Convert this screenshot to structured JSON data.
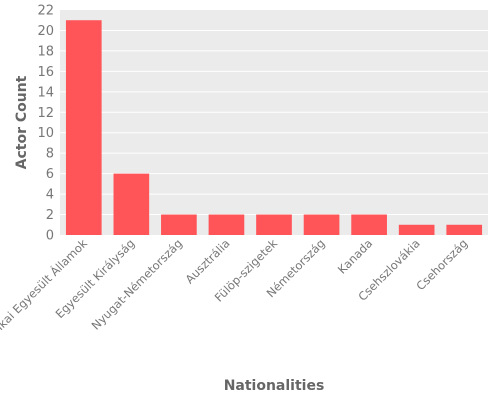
{
  "chart_data": {
    "type": "bar",
    "categories": [
      "Amerikai Egyesült Államok",
      "Egyesült Királyság",
      "Nyugat-Németország",
      "Ausztrália",
      "Fülöp-szigetek",
      "Németország",
      "Kanada",
      "Csehszlovákia",
      "Csehország"
    ],
    "values": [
      21,
      6,
      2,
      2,
      2,
      2,
      2,
      1,
      1
    ],
    "title": "",
    "xlabel": "Nationalities",
    "ylabel": "Actor Count",
    "ylim": [
      0,
      22
    ],
    "yticks": [
      0,
      2,
      4,
      6,
      8,
      10,
      12,
      14,
      16,
      18,
      20,
      22
    ],
    "grid": true,
    "legend": "none",
    "colors": {
      "bar": "#FF5558",
      "panel": "#EBEBEB",
      "grid": "#FFFFFF"
    }
  }
}
